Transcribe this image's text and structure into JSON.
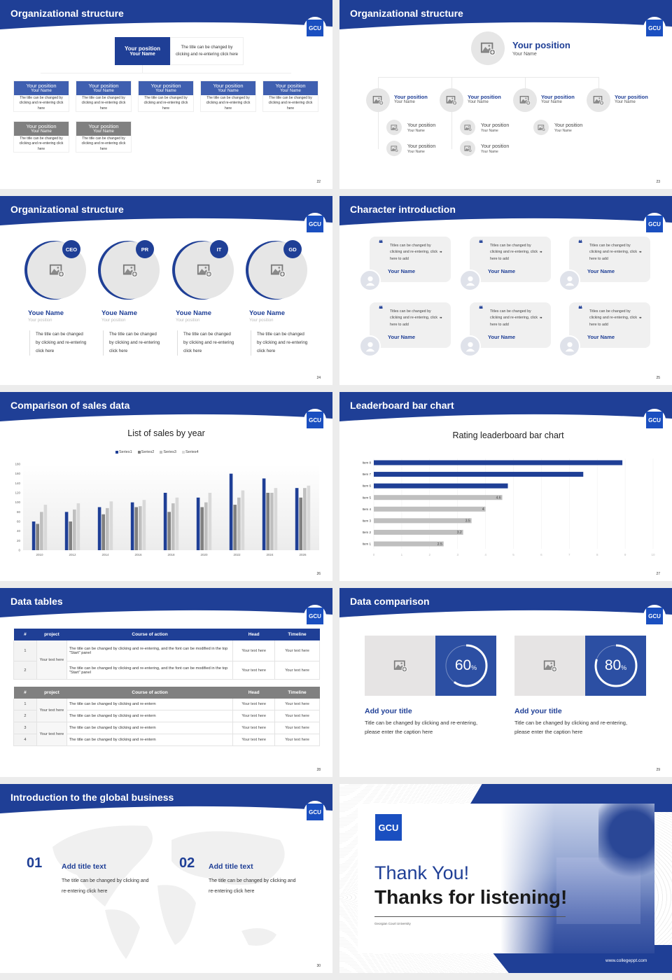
{
  "brand": {
    "logo": "GCU",
    "primary": "#1f3f96",
    "accent": "#3f5fb0",
    "gray": "#808080"
  },
  "s22": {
    "title": "Organizational structure",
    "page": "22",
    "top": {
      "position": "Your position",
      "name": "Your Name",
      "desc": "The title can be changed by clicking and re-entering click here"
    },
    "row1": [
      {
        "position": "Your position",
        "name": "Your Name",
        "desc": "The title can be changed by clicking and re-entering click here"
      },
      {
        "position": "Your position",
        "name": "Your Name",
        "desc": "The title can be changed by clicking and re-entering click here"
      },
      {
        "position": "Your position",
        "name": "Your Name",
        "desc": "The title can be changed by clicking and re-entering click here"
      },
      {
        "position": "Your position",
        "name": "Your Name",
        "desc": "The title can be changed by clicking and re-entering click here"
      },
      {
        "position": "Your position",
        "name": "Your Name",
        "desc": "The title can be changed by clicking and re-entering click here"
      }
    ],
    "row2": [
      {
        "position": "Your position",
        "name": "Your Name",
        "desc": "The title can be changed by clicking and re-entering click here"
      },
      {
        "position": "Your position",
        "name": "Your Name",
        "desc": "The title can be changed by clicking and re-entering click here"
      }
    ]
  },
  "s23": {
    "title": "Organizational structure",
    "page": "23",
    "top": {
      "position": "Your position",
      "name": "Your Name"
    },
    "level2": [
      {
        "position": "Your position",
        "name": "Your Name"
      },
      {
        "position": "Your position",
        "name": "Your Name"
      },
      {
        "position": "Your position",
        "name": "Your Name"
      },
      {
        "position": "Your position",
        "name": "Your Name"
      }
    ],
    "level3": [
      {
        "position": "Your position",
        "name": "Your Name"
      },
      {
        "position": "Your position",
        "name": "Your Name"
      },
      {
        "position": "Your position",
        "name": "Your Name"
      },
      {
        "position": "Your position",
        "name": "Your Name"
      },
      {
        "position": "Your position",
        "name": "Your Name"
      }
    ]
  },
  "s24": {
    "title": "Organizational structure",
    "page": "24",
    "members": [
      {
        "badge": "CEO",
        "name": "Youe Name",
        "position": "Your position",
        "desc": "The title can be changed by clicking and re-entering click here"
      },
      {
        "badge": "PR",
        "name": "Youe Name",
        "position": "Your position",
        "desc": "The title can be changed by clicking and re-entering click here"
      },
      {
        "badge": "IT",
        "name": "Youe Name",
        "position": "Your position",
        "desc": "The title can be changed by clicking and re-entering click here"
      },
      {
        "badge": "GD",
        "name": "Youe Name",
        "position": "Your position",
        "desc": "The title can be changed by clicking and re-entering click here"
      }
    ]
  },
  "s25": {
    "title": "Character introduction",
    "page": "25",
    "cards": [
      {
        "quote": "Titles can be changed by clicking and re-entering, click here to add",
        "name": "Your Name"
      },
      {
        "quote": "Titles can be changed by clicking and re-entering, click here to add",
        "name": "Your Name"
      },
      {
        "quote": "Titles can be changed by clicking and re-entering, click here to add",
        "name": "Your Name"
      },
      {
        "quote": "Titles can be changed by clicking and re-entering, click here to add",
        "name": "Your Name"
      },
      {
        "quote": "Titles can be changed by clicking and re-entering, click here to add",
        "name": "Your Name"
      },
      {
        "quote": "Titles can be changed by clicking and re-entering, click here to add",
        "name": "Your Name"
      }
    ]
  },
  "s26": {
    "title": "Comparison of sales data",
    "page": "26"
  },
  "s27": {
    "title": "Leaderboard bar chart",
    "page": "27"
  },
  "chart_data": [
    {
      "type": "bar",
      "title": "List of sales by year",
      "categories": [
        "2010",
        "2012",
        "2014",
        "2016",
        "2018",
        "2020",
        "2022",
        "2024",
        "2026"
      ],
      "series": [
        {
          "name": "Series1",
          "color": "#1f3f96",
          "values": [
            60,
            80,
            90,
            100,
            120,
            110,
            160,
            150,
            130
          ]
        },
        {
          "name": "Series2",
          "color": "#808080",
          "values": [
            55,
            60,
            75,
            90,
            80,
            90,
            95,
            120,
            110
          ]
        },
        {
          "name": "Series3",
          "color": "#bfbfbf",
          "values": [
            80,
            85,
            88,
            92,
            98,
            100,
            110,
            120,
            130
          ]
        },
        {
          "name": "Series4",
          "color": "#d9d9d9",
          "values": [
            95,
            98,
            102,
            105,
            110,
            120,
            125,
            130,
            135
          ]
        }
      ],
      "ylim": [
        0,
        180
      ],
      "yticks": [
        "0",
        "20",
        "40",
        "60",
        "80",
        "100",
        "120",
        "140",
        "160",
        "180"
      ],
      "legend": "top",
      "grid": false
    },
    {
      "type": "bar",
      "orientation": "horizontal",
      "title": "Rating leaderboard bar chart",
      "categories": [
        "Item 1",
        "Item 2",
        "Item 3",
        "Item 4",
        "Item 5",
        "Item 6",
        "Item 7",
        "Item 8"
      ],
      "values": [
        2.5,
        3.2,
        3.5,
        4,
        4.6,
        4.8,
        7.5,
        8.9
      ],
      "value_labels": [
        "2.5",
        "3.2",
        "3.5",
        "4",
        "4.6",
        "",
        "",
        ""
      ],
      "highlight": [
        false,
        false,
        false,
        false,
        false,
        true,
        true,
        true
      ],
      "highlight_color": "#1f3f96",
      "base_color": "#bfbfbf",
      "xlim": [
        0,
        10
      ],
      "xticks": [
        "0",
        "1",
        "2",
        "3",
        "4",
        "5",
        "6",
        "7",
        "8",
        "9",
        "10"
      ],
      "grid": true
    }
  ],
  "s28": {
    "title": "Data tables",
    "page": "28",
    "headers": [
      "#",
      "project",
      "Course of action",
      "Head",
      "Timeline"
    ],
    "table1": {
      "groups": [
        {
          "project": "Your text here",
          "rows": [
            {
              "num": "1",
              "action": "The title can be changed by clicking and re-entering, and the font can be modified in the top \"Start\" panel",
              "head": "Your text here",
              "timeline": "Your text here"
            },
            {
              "num": "2",
              "action": "The title can be changed by clicking and re-entering, and the font can be modified in the top \"Start\" panel",
              "head": "Your text here",
              "timeline": "Your text here"
            }
          ]
        }
      ]
    },
    "table2": {
      "groups": [
        {
          "project": "Your text here",
          "rows": [
            {
              "num": "1",
              "action": "The title can be changed by clicking and re-entern",
              "head": "Your text here",
              "timeline": "Your text here"
            },
            {
              "num": "2",
              "action": "The title can be changed by clicking and re-entern",
              "head": "Your text here",
              "timeline": "Your text here"
            }
          ]
        },
        {
          "project": "Your text here",
          "rows": [
            {
              "num": "3",
              "action": "The title can be changed by clicking and re-entern",
              "head": "Your text here",
              "timeline": "Your text here"
            },
            {
              "num": "4",
              "action": "The title can be changed by clicking and re-entern",
              "head": "Your text here",
              "timeline": "Your text here"
            }
          ]
        }
      ]
    }
  },
  "s29": {
    "title": "Data comparison",
    "page": "29",
    "items": [
      {
        "percent": 60,
        "value": "60",
        "unit": "%",
        "heading": "Add your title",
        "caption": "Title can be changed by clicking and re-entering, please enter the caption here"
      },
      {
        "percent": 80,
        "value": "80",
        "unit": "%",
        "heading": "Add your title",
        "caption": "Title can be changed by clicking and re-entering, please enter the caption here"
      }
    ]
  },
  "s30": {
    "title": "Introduction to the global business",
    "page": "30",
    "items": [
      {
        "num": "01",
        "heading": "Add title text",
        "text": "The title can be changed by clicking and re-entering click here"
      },
      {
        "num": "02",
        "heading": "Add title text",
        "text": "The title can be changed by clicking and re-entering click here"
      }
    ]
  },
  "s31": {
    "logo": "GCU",
    "line1": "Thank You!",
    "line2": "Thanks for listening!",
    "university": "Georgian Court University",
    "url": "www.collegeppt.com"
  }
}
